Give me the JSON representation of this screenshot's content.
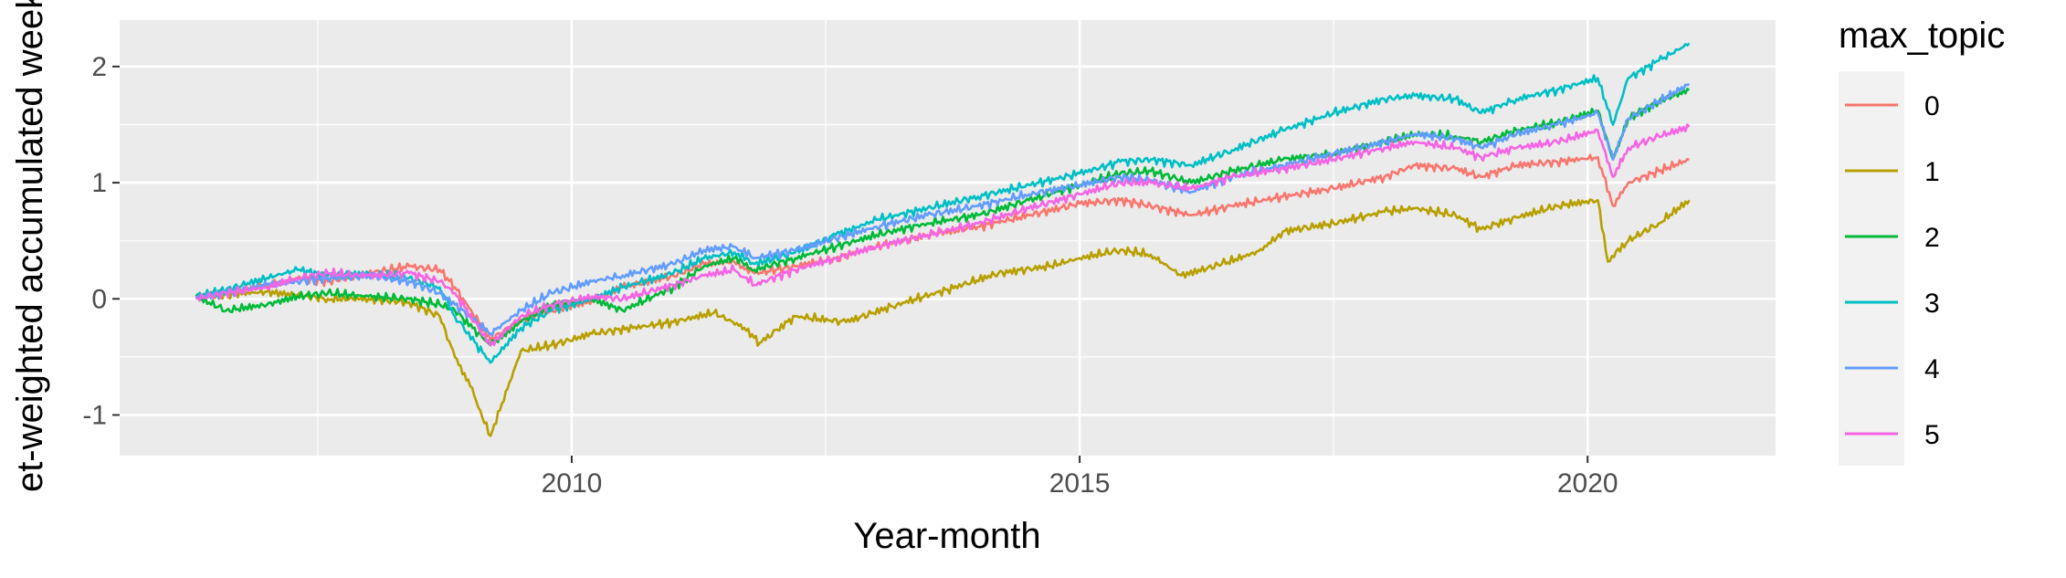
{
  "chart_data": {
    "type": "line",
    "title": "",
    "xlabel": "Year-month",
    "ylabel": "et-weighted accumulated weekl",
    "xlim": [
      2005.55,
      2021.85
    ],
    "ylim": [
      -1.35,
      2.4
    ],
    "x_ticks": [
      2010,
      2015,
      2020
    ],
    "x_tick_labels": [
      "2010",
      "2015",
      "2020"
    ],
    "y_ticks": [
      -1,
      0,
      1,
      2
    ],
    "y_tick_labels": [
      "-1",
      "0",
      "1",
      "2"
    ],
    "grid": true,
    "legend": {
      "title": "max_topic",
      "position": "right"
    },
    "series": [
      {
        "name": "0",
        "color": "#F8766D",
        "x": [
          2006.3,
          2006.6,
          2007.0,
          2007.3,
          2007.6,
          2008.0,
          2008.4,
          2008.7,
          2008.85,
          2009.2,
          2009.5,
          2009.8,
          2010.2,
          2010.5,
          2011.0,
          2011.3,
          2011.6,
          2011.8,
          2012.2,
          2012.6,
          2013.0,
          2013.5,
          2014.0,
          2014.5,
          2015.0,
          2015.4,
          2015.7,
          2016.1,
          2016.5,
          2017.0,
          2017.5,
          2018.0,
          2018.3,
          2018.7,
          2018.95,
          2019.3,
          2019.7,
          2020.1,
          2020.25,
          2020.4,
          2020.7,
          2021.0
        ],
        "values": [
          0.02,
          0.05,
          0.12,
          0.18,
          0.15,
          0.22,
          0.28,
          0.25,
          0.1,
          -0.35,
          -0.18,
          -0.1,
          -0.02,
          0.1,
          0.2,
          0.3,
          0.32,
          0.22,
          0.28,
          0.35,
          0.45,
          0.55,
          0.62,
          0.72,
          0.82,
          0.85,
          0.8,
          0.72,
          0.8,
          0.88,
          0.95,
          1.05,
          1.15,
          1.12,
          1.05,
          1.15,
          1.18,
          1.22,
          0.8,
          1.0,
          1.1,
          1.2
        ]
      },
      {
        "name": "1",
        "color": "#B79F00",
        "x": [
          2006.3,
          2006.6,
          2007.0,
          2007.3,
          2007.6,
          2008.0,
          2008.4,
          2008.7,
          2008.85,
          2009.0,
          2009.2,
          2009.5,
          2009.8,
          2010.2,
          2010.6,
          2011.0,
          2011.4,
          2011.7,
          2011.85,
          2012.2,
          2012.7,
          2013.2,
          2013.7,
          2014.2,
          2014.7,
          2015.0,
          2015.4,
          2015.7,
          2016.0,
          2016.4,
          2016.8,
          2017.0,
          2017.5,
          2018.0,
          2018.3,
          2018.7,
          2018.95,
          2019.3,
          2019.7,
          2020.1,
          2020.2,
          2020.4,
          2020.7,
          2021.0
        ],
        "values": [
          0.02,
          0.04,
          0.06,
          0.03,
          0.0,
          0.0,
          -0.03,
          -0.15,
          -0.5,
          -0.75,
          -1.18,
          -0.45,
          -0.4,
          -0.3,
          -0.25,
          -0.2,
          -0.12,
          -0.25,
          -0.38,
          -0.15,
          -0.2,
          -0.05,
          0.08,
          0.22,
          0.28,
          0.35,
          0.42,
          0.38,
          0.2,
          0.3,
          0.42,
          0.58,
          0.65,
          0.75,
          0.78,
          0.72,
          0.6,
          0.7,
          0.8,
          0.85,
          0.32,
          0.5,
          0.65,
          0.85
        ]
      },
      {
        "name": "2",
        "color": "#00BA38",
        "x": [
          2006.3,
          2006.6,
          2007.0,
          2007.3,
          2007.6,
          2008.0,
          2008.4,
          2008.7,
          2008.85,
          2009.2,
          2009.5,
          2009.8,
          2010.2,
          2010.5,
          2011.0,
          2011.3,
          2011.6,
          2011.8,
          2012.2,
          2012.6,
          2013.0,
          2013.5,
          2014.0,
          2014.5,
          2015.0,
          2015.4,
          2015.7,
          2016.1,
          2016.5,
          2017.0,
          2017.5,
          2018.0,
          2018.3,
          2018.7,
          2018.95,
          2019.3,
          2019.7,
          2020.1,
          2020.25,
          2020.4,
          2020.7,
          2021.0
        ],
        "values": [
          0.02,
          -0.1,
          -0.05,
          0.02,
          0.05,
          0.02,
          0.0,
          -0.05,
          -0.1,
          -0.4,
          -0.2,
          -0.05,
          0.0,
          -0.1,
          0.1,
          0.28,
          0.35,
          0.25,
          0.35,
          0.45,
          0.55,
          0.65,
          0.72,
          0.85,
          0.98,
          1.08,
          1.1,
          1.0,
          1.1,
          1.2,
          1.25,
          1.35,
          1.42,
          1.4,
          1.35,
          1.45,
          1.52,
          1.62,
          1.2,
          1.55,
          1.7,
          1.8
        ]
      },
      {
        "name": "3",
        "color": "#00BFC4",
        "x": [
          2006.3,
          2006.6,
          2007.0,
          2007.3,
          2007.6,
          2008.0,
          2008.4,
          2008.7,
          2008.85,
          2009.2,
          2009.5,
          2009.8,
          2010.2,
          2010.5,
          2011.0,
          2011.3,
          2011.6,
          2011.8,
          2012.2,
          2012.6,
          2013.0,
          2013.5,
          2014.0,
          2014.5,
          2015.0,
          2015.4,
          2015.7,
          2016.1,
          2016.5,
          2017.0,
          2017.5,
          2018.0,
          2018.3,
          2018.7,
          2018.95,
          2019.3,
          2019.7,
          2020.1,
          2020.25,
          2020.4,
          2020.7,
          2021.0
        ],
        "values": [
          0.02,
          0.08,
          0.18,
          0.25,
          0.2,
          0.22,
          0.18,
          0.1,
          -0.15,
          -0.55,
          -0.25,
          -0.1,
          0.0,
          0.1,
          0.22,
          0.35,
          0.4,
          0.3,
          0.4,
          0.55,
          0.68,
          0.78,
          0.88,
          0.98,
          1.08,
          1.18,
          1.2,
          1.15,
          1.28,
          1.45,
          1.6,
          1.72,
          1.75,
          1.72,
          1.6,
          1.72,
          1.8,
          1.9,
          1.5,
          1.9,
          2.05,
          2.2
        ]
      },
      {
        "name": "4",
        "color": "#619CFF",
        "x": [
          2006.3,
          2006.6,
          2007.0,
          2007.3,
          2007.6,
          2008.0,
          2008.4,
          2008.7,
          2008.85,
          2009.2,
          2009.5,
          2009.8,
          2010.2,
          2010.5,
          2011.0,
          2011.3,
          2011.6,
          2011.8,
          2012.2,
          2012.6,
          2013.0,
          2013.5,
          2014.0,
          2014.5,
          2015.0,
          2015.4,
          2015.7,
          2016.1,
          2016.5,
          2017.0,
          2017.5,
          2018.0,
          2018.3,
          2018.7,
          2018.95,
          2019.3,
          2019.7,
          2020.1,
          2020.25,
          2020.4,
          2020.7,
          2021.0
        ],
        "values": [
          0.02,
          0.05,
          0.12,
          0.15,
          0.18,
          0.2,
          0.15,
          0.05,
          -0.05,
          -0.3,
          -0.1,
          0.05,
          0.15,
          0.2,
          0.3,
          0.42,
          0.45,
          0.35,
          0.42,
          0.52,
          0.62,
          0.72,
          0.8,
          0.9,
          0.98,
          1.05,
          1.02,
          0.92,
          1.05,
          1.15,
          1.25,
          1.35,
          1.42,
          1.38,
          1.3,
          1.42,
          1.5,
          1.6,
          1.2,
          1.55,
          1.7,
          1.85
        ]
      },
      {
        "name": "5",
        "color": "#F564E3",
        "x": [
          2006.3,
          2006.6,
          2007.0,
          2007.3,
          2007.6,
          2008.0,
          2008.4,
          2008.7,
          2008.85,
          2009.2,
          2009.5,
          2009.8,
          2010.2,
          2010.5,
          2011.0,
          2011.3,
          2011.6,
          2011.8,
          2012.2,
          2012.6,
          2013.0,
          2013.5,
          2014.0,
          2014.5,
          2015.0,
          2015.4,
          2015.7,
          2016.1,
          2016.5,
          2017.0,
          2017.5,
          2018.0,
          2018.3,
          2018.7,
          2018.95,
          2019.3,
          2019.7,
          2020.1,
          2020.25,
          2020.4,
          2020.7,
          2021.0
        ],
        "values": [
          0.0,
          0.05,
          0.1,
          0.18,
          0.22,
          0.2,
          0.22,
          0.15,
          0.05,
          -0.4,
          -0.15,
          -0.05,
          0.02,
          0.0,
          0.12,
          0.2,
          0.25,
          0.12,
          0.25,
          0.35,
          0.45,
          0.55,
          0.65,
          0.78,
          0.9,
          1.0,
          1.0,
          0.95,
          1.05,
          1.12,
          1.2,
          1.3,
          1.35,
          1.3,
          1.22,
          1.3,
          1.35,
          1.45,
          1.05,
          1.3,
          1.4,
          1.48
        ]
      }
    ]
  }
}
